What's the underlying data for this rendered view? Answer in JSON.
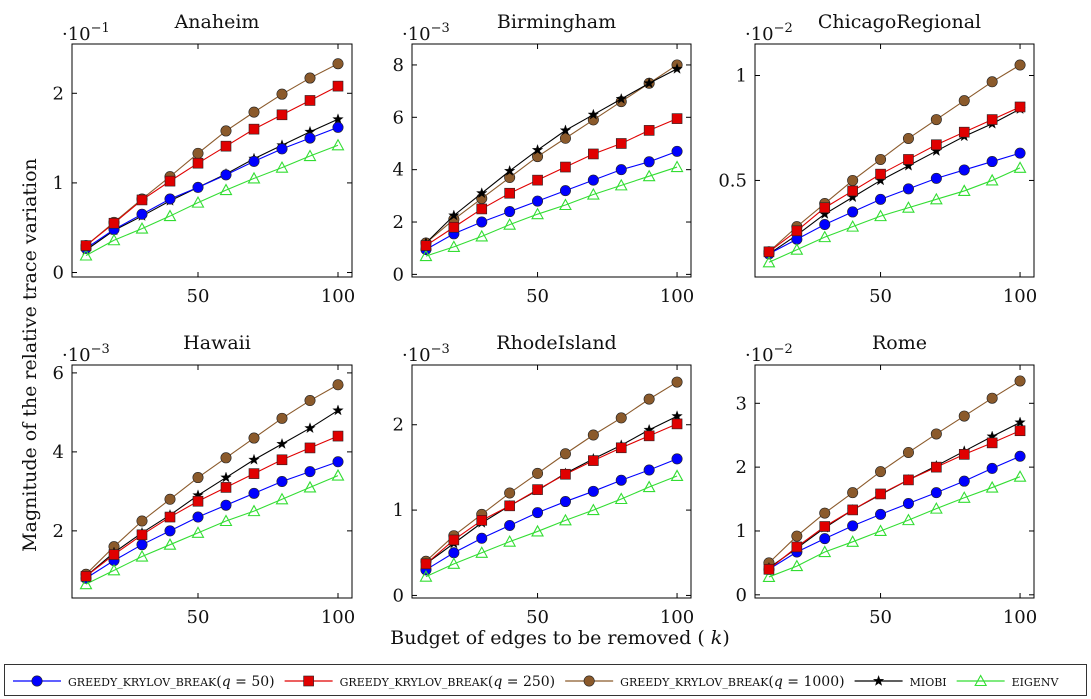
{
  "figure": {
    "ylabel": "Magnitude of the relative trace variation",
    "xlabel": "Budget of edges to be removed (k)"
  },
  "legend": [
    {
      "label": "GREEDY_KRYLOV_BREAK(q = 50)",
      "color": "#0000ff",
      "marker": "circle"
    },
    {
      "label": "GREEDY_KRYLOV_BREAK(q = 250)",
      "color": "#e00000",
      "marker": "square"
    },
    {
      "label": "GREEDY_KRYLOV_BREAK(q = 1000)",
      "color": "#8b5a2b",
      "marker": "circle"
    },
    {
      "label": "MIOBI",
      "color": "#000000",
      "marker": "star"
    },
    {
      "label": "EIGENV",
      "color": "#33dd33",
      "marker": "triangle"
    }
  ],
  "chart_data": [
    {
      "type": "line",
      "title": "Anaheim",
      "scale_label": "·10",
      "scale_exp": "−1",
      "x": [
        10,
        20,
        30,
        40,
        50,
        60,
        70,
        80,
        90,
        100
      ],
      "xlim": [
        5,
        105
      ],
      "ylim": [
        -0.05,
        2.55
      ],
      "xticks": [
        50,
        100
      ],
      "yticks": [
        0,
        1,
        2
      ],
      "series": [
        {
          "name": "GREEDY_KRYLOV_BREAK(q = 50)",
          "values": [
            0.27,
            0.48,
            0.65,
            0.82,
            0.95,
            1.09,
            1.24,
            1.38,
            1.5,
            1.62
          ]
        },
        {
          "name": "GREEDY_KRYLOV_BREAK(q = 250)",
          "values": [
            0.3,
            0.55,
            0.81,
            1.02,
            1.22,
            1.41,
            1.6,
            1.76,
            1.92,
            2.08
          ]
        },
        {
          "name": "GREEDY_KRYLOV_BREAK(q = 1000)",
          "values": [
            0.3,
            0.56,
            0.82,
            1.07,
            1.33,
            1.58,
            1.79,
            1.99,
            2.17,
            2.33
          ]
        },
        {
          "name": "MIOBI",
          "values": [
            0.25,
            0.47,
            0.63,
            0.8,
            0.95,
            1.1,
            1.27,
            1.42,
            1.57,
            1.71
          ]
        },
        {
          "name": "EIGENV",
          "values": [
            0.19,
            0.36,
            0.49,
            0.63,
            0.78,
            0.92,
            1.05,
            1.17,
            1.3,
            1.42
          ]
        }
      ]
    },
    {
      "type": "line",
      "title": "Birmingham",
      "scale_label": "·10",
      "scale_exp": "−3",
      "x": [
        10,
        20,
        30,
        40,
        50,
        60,
        70,
        80,
        90,
        100
      ],
      "xlim": [
        5,
        105
      ],
      "ylim": [
        -0.1,
        8.8
      ],
      "xticks": [
        50,
        100
      ],
      "yticks": [
        0,
        2,
        4,
        6,
        8
      ],
      "series": [
        {
          "name": "GREEDY_KRYLOV_BREAK(q = 50)",
          "values": [
            0.95,
            1.55,
            2.0,
            2.4,
            2.8,
            3.2,
            3.6,
            4.0,
            4.3,
            4.7
          ]
        },
        {
          "name": "GREEDY_KRYLOV_BREAK(q = 250)",
          "values": [
            1.1,
            1.8,
            2.5,
            3.1,
            3.6,
            4.1,
            4.6,
            5.0,
            5.5,
            5.95
          ]
        },
        {
          "name": "GREEDY_KRYLOV_BREAK(q = 1000)",
          "values": [
            1.2,
            2.1,
            2.9,
            3.7,
            4.5,
            5.2,
            5.9,
            6.6,
            7.3,
            8.0
          ]
        },
        {
          "name": "MIOBI",
          "values": [
            1.2,
            2.25,
            3.1,
            3.95,
            4.75,
            5.5,
            6.1,
            6.7,
            7.3,
            7.85
          ]
        },
        {
          "name": "EIGENV",
          "values": [
            0.7,
            1.05,
            1.45,
            1.9,
            2.3,
            2.65,
            3.05,
            3.4,
            3.75,
            4.1
          ]
        }
      ]
    },
    {
      "type": "line",
      "title": "ChicagoRegional",
      "scale_label": "·10",
      "scale_exp": "−2",
      "x": [
        10,
        20,
        30,
        40,
        50,
        60,
        70,
        80,
        90,
        100
      ],
      "xlim": [
        5,
        105
      ],
      "ylim": [
        0.04,
        1.15
      ],
      "xticks": [
        50,
        100
      ],
      "yticks": [
        0.5,
        1
      ],
      "series": [
        {
          "name": "GREEDY_KRYLOV_BREAK(q = 50)",
          "values": [
            0.15,
            0.22,
            0.29,
            0.35,
            0.41,
            0.46,
            0.51,
            0.55,
            0.59,
            0.63
          ]
        },
        {
          "name": "GREEDY_KRYLOV_BREAK(q = 250)",
          "values": [
            0.16,
            0.26,
            0.37,
            0.45,
            0.53,
            0.6,
            0.67,
            0.73,
            0.79,
            0.85
          ]
        },
        {
          "name": "GREEDY_KRYLOV_BREAK(q = 1000)",
          "values": [
            0.16,
            0.28,
            0.39,
            0.5,
            0.6,
            0.7,
            0.79,
            0.88,
            0.97,
            1.05
          ]
        },
        {
          "name": "MIOBI",
          "values": [
            0.15,
            0.24,
            0.34,
            0.42,
            0.5,
            0.57,
            0.64,
            0.71,
            0.77,
            0.84
          ]
        },
        {
          "name": "EIGENV",
          "values": [
            0.11,
            0.17,
            0.23,
            0.28,
            0.33,
            0.37,
            0.41,
            0.45,
            0.5,
            0.56
          ]
        }
      ]
    },
    {
      "type": "line",
      "title": "Hawaii",
      "scale_label": "·10",
      "scale_exp": "−3",
      "x": [
        10,
        20,
        30,
        40,
        50,
        60,
        70,
        80,
        90,
        100
      ],
      "xlim": [
        5,
        105
      ],
      "ylim": [
        0.3,
        6.2
      ],
      "xticks": [
        50,
        100
      ],
      "yticks": [
        2,
        4,
        6
      ],
      "series": [
        {
          "name": "GREEDY_KRYLOV_BREAK(q = 50)",
          "values": [
            0.8,
            1.25,
            1.65,
            2.0,
            2.35,
            2.65,
            2.95,
            3.25,
            3.5,
            3.75
          ]
        },
        {
          "name": "GREEDY_KRYLOV_BREAK(q = 250)",
          "values": [
            0.85,
            1.4,
            1.9,
            2.35,
            2.75,
            3.1,
            3.45,
            3.8,
            4.1,
            4.4
          ]
        },
        {
          "name": "GREEDY_KRYLOV_BREAK(q = 1000)",
          "values": [
            0.9,
            1.6,
            2.25,
            2.8,
            3.35,
            3.85,
            4.35,
            4.85,
            5.3,
            5.7
          ]
        },
        {
          "name": "MIOBI",
          "values": [
            0.85,
            1.45,
            1.95,
            2.4,
            2.9,
            3.35,
            3.8,
            4.2,
            4.6,
            5.05
          ]
        },
        {
          "name": "EIGENV",
          "values": [
            0.65,
            1.0,
            1.35,
            1.65,
            1.95,
            2.25,
            2.5,
            2.8,
            3.1,
            3.4
          ]
        }
      ]
    },
    {
      "type": "line",
      "title": "RhodeIsland",
      "scale_label": "·10",
      "scale_exp": "−3",
      "x": [
        10,
        20,
        30,
        40,
        50,
        60,
        70,
        80,
        90,
        100
      ],
      "xlim": [
        5,
        105
      ],
      "ylim": [
        -0.03,
        2.7
      ],
      "xticks": [
        50,
        100
      ],
      "yticks": [
        0,
        1,
        2
      ],
      "series": [
        {
          "name": "GREEDY_KRYLOV_BREAK(q = 50)",
          "values": [
            0.3,
            0.5,
            0.67,
            0.82,
            0.97,
            1.1,
            1.22,
            1.35,
            1.47,
            1.6
          ]
        },
        {
          "name": "GREEDY_KRYLOV_BREAK(q = 250)",
          "values": [
            0.37,
            0.65,
            0.88,
            1.05,
            1.24,
            1.42,
            1.58,
            1.73,
            1.87,
            2.01
          ]
        },
        {
          "name": "GREEDY_KRYLOV_BREAK(q = 1000)",
          "values": [
            0.4,
            0.7,
            0.95,
            1.2,
            1.43,
            1.66,
            1.88,
            2.08,
            2.3,
            2.5
          ]
        },
        {
          "name": "MIOBI",
          "values": [
            0.37,
            0.61,
            0.85,
            1.05,
            1.23,
            1.43,
            1.6,
            1.76,
            1.94,
            2.1
          ]
        },
        {
          "name": "EIGENV",
          "values": [
            0.22,
            0.37,
            0.5,
            0.63,
            0.75,
            0.88,
            1.0,
            1.13,
            1.27,
            1.4
          ]
        }
      ]
    },
    {
      "type": "line",
      "title": "Rome",
      "scale_label": "·10",
      "scale_exp": "−2",
      "x": [
        10,
        20,
        30,
        40,
        50,
        60,
        70,
        80,
        90,
        100
      ],
      "xlim": [
        5,
        105
      ],
      "ylim": [
        -0.05,
        3.6
      ],
      "xticks": [
        50,
        100
      ],
      "yticks": [
        0,
        1,
        2,
        3
      ],
      "series": [
        {
          "name": "GREEDY_KRYLOV_BREAK(q = 50)",
          "values": [
            0.4,
            0.67,
            0.88,
            1.08,
            1.26,
            1.43,
            1.6,
            1.78,
            1.98,
            2.17
          ]
        },
        {
          "name": "GREEDY_KRYLOV_BREAK(q = 250)",
          "values": [
            0.4,
            0.75,
            1.07,
            1.33,
            1.58,
            1.8,
            2.0,
            2.2,
            2.38,
            2.57
          ]
        },
        {
          "name": "GREEDY_KRYLOV_BREAK(q = 1000)",
          "values": [
            0.5,
            0.92,
            1.28,
            1.6,
            1.93,
            2.23,
            2.52,
            2.8,
            3.08,
            3.35
          ]
        },
        {
          "name": "MIOBI",
          "values": [
            0.42,
            0.73,
            1.05,
            1.33,
            1.57,
            1.8,
            2.02,
            2.25,
            2.48,
            2.7
          ]
        },
        {
          "name": "EIGENV",
          "values": [
            0.28,
            0.45,
            0.67,
            0.83,
            1.0,
            1.17,
            1.35,
            1.52,
            1.68,
            1.85
          ]
        }
      ]
    }
  ]
}
